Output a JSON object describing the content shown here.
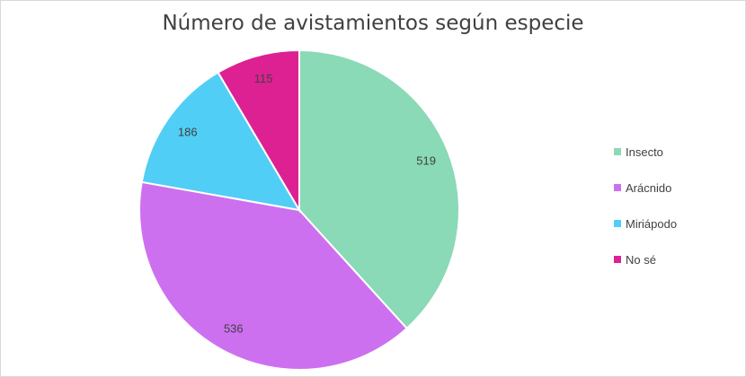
{
  "chart_data": {
    "type": "pie",
    "title": "Número de avistamientos según especie",
    "categories": [
      "Insecto",
      "Arácnido",
      "Miriápodo",
      "No sé"
    ],
    "values": [
      519,
      536,
      186,
      115
    ],
    "colors": [
      "#8ad9b7",
      "#cd70f0",
      "#51cef5",
      "#dd2192"
    ],
    "legend_position": "right",
    "start_angle": "12 o'clock, clockwise"
  }
}
